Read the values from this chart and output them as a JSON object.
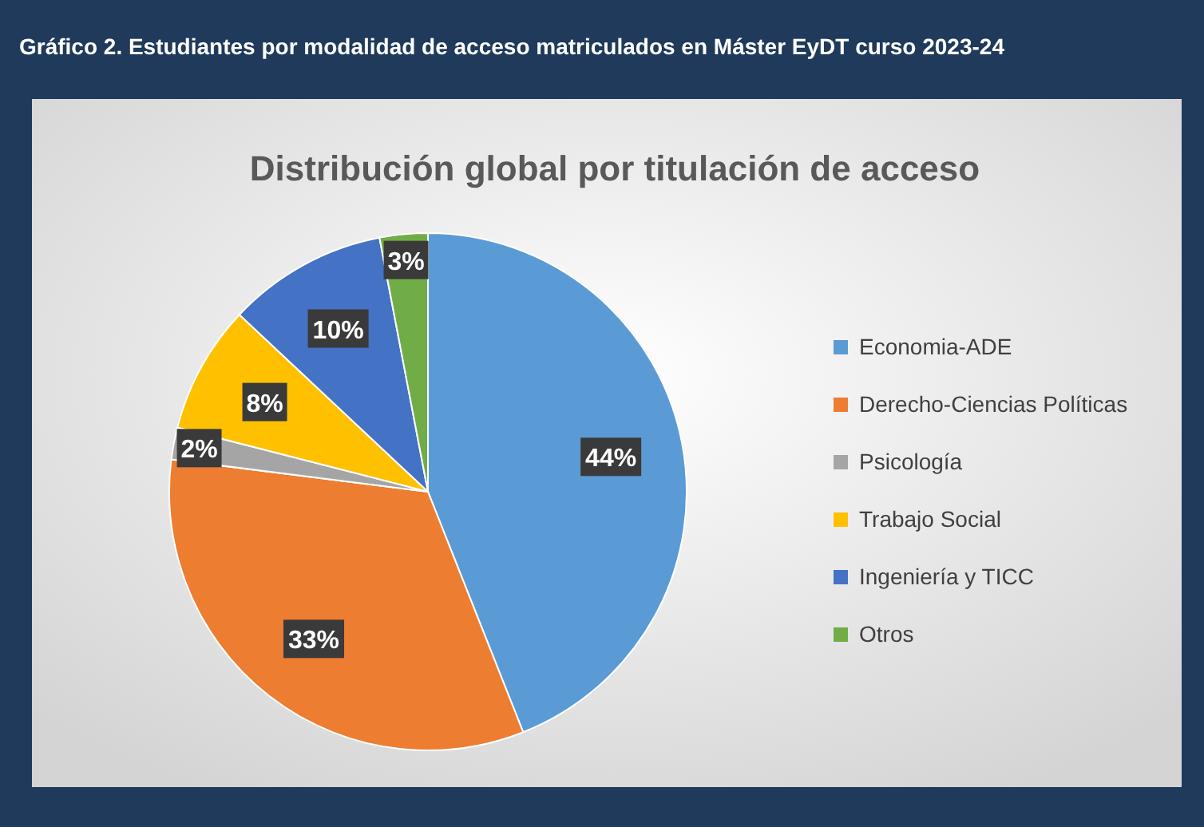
{
  "chart_data": {
    "type": "pie",
    "title": "Gráfico 2. Estudiantes por modalidad de acceso matriculados en Máster EyDT curso 2023-24",
    "subtitle": "Distribución global por titulación de acceso",
    "categories": [
      "Economia-ADE",
      "Derecho-Ciencias Políticas",
      "Psicología",
      "Trabajo Social",
      "Ingeniería y TICC",
      "Otros"
    ],
    "values": [
      44,
      33,
      2,
      8,
      10,
      3
    ],
    "value_labels": [
      "44%",
      "33%",
      "2%",
      "8%",
      "10%",
      "3%"
    ],
    "colors": [
      "#5b9bd5",
      "#ed7d31",
      "#a5a5a5",
      "#ffc000",
      "#4472c4",
      "#70ad47"
    ],
    "legend": "right"
  }
}
